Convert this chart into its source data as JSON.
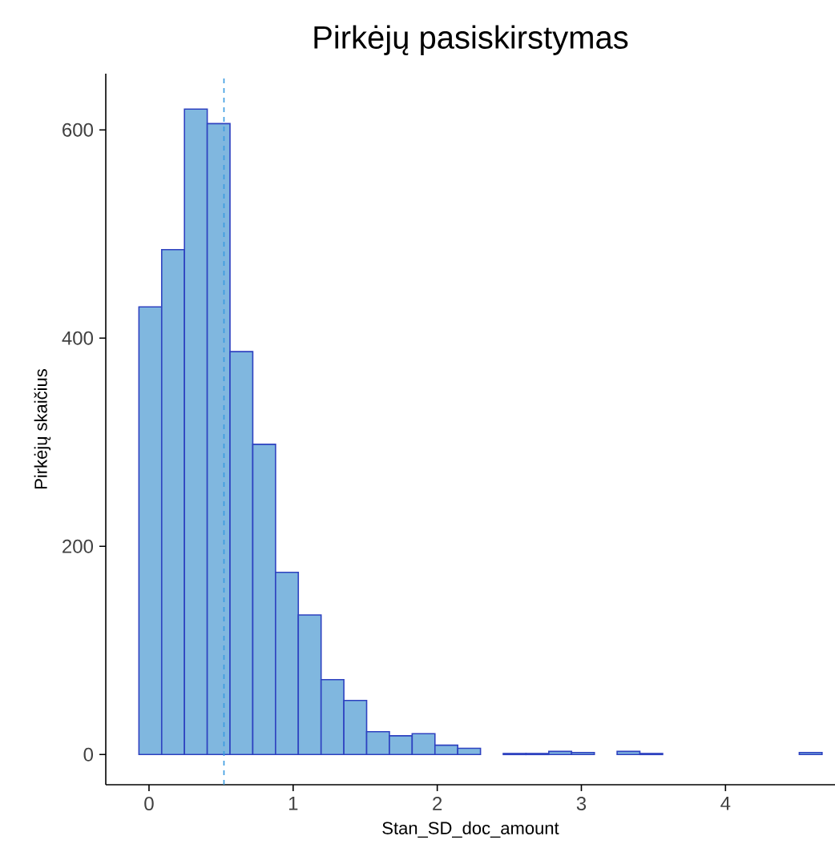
{
  "chart_data": {
    "type": "histogram",
    "title": "Pirkėjų pasiskirstymas",
    "xlabel": "Stan_SD_doc_amount",
    "ylabel": "Pirkėjų skaičius",
    "bins": [
      -0.07,
      0.088,
      0.246,
      0.404,
      0.562,
      0.72,
      0.878,
      1.036,
      1.194,
      1.352,
      1.51,
      1.668,
      1.826,
      1.984,
      2.142,
      2.3,
      2.458,
      2.616,
      2.774,
      2.932,
      3.09,
      3.248,
      3.406,
      3.564,
      3.722,
      3.88,
      4.038,
      4.196,
      4.354,
      4.512,
      4.67
    ],
    "values": [
      430,
      485,
      620,
      606,
      387,
      298,
      175,
      134,
      72,
      52,
      22,
      18,
      20,
      9,
      6,
      0,
      1,
      1,
      3,
      2,
      0,
      3,
      1,
      0,
      0,
      0,
      0,
      0,
      0,
      2
    ],
    "color": "#80b7df",
    "xlim": [
      -0.3,
      4.76
    ],
    "ylim": [
      -29,
      654
    ],
    "xticks": [
      0,
      1,
      2,
      3,
      4
    ],
    "yticks": [
      0,
      200,
      400,
      600
    ],
    "grid": false,
    "ref_lines": [
      {
        "axis": "x",
        "value": 0.52,
        "color": "#3a9be0",
        "line_style": "dashed"
      }
    ]
  }
}
